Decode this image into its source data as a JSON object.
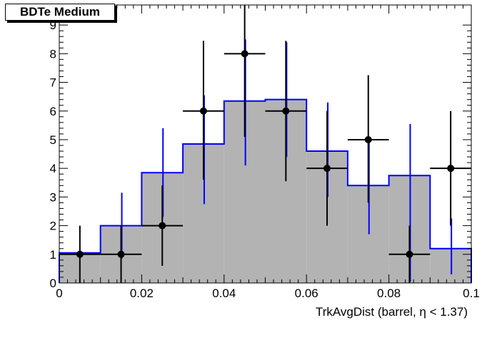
{
  "chart_data": {
    "type": "bar",
    "title": "BDTe Medium",
    "xlabel": "TrkAvgDist (barrel,  η < 1.37)",
    "ylabel": "",
    "xlim": [
      0,
      0.1
    ],
    "ylim": [
      0,
      9.7
    ],
    "grid": false,
    "bin_edges": [
      0,
      0.01,
      0.02,
      0.03,
      0.04,
      0.05,
      0.06,
      0.07,
      0.08,
      0.09,
      0.1
    ],
    "x_ticks": [
      "0",
      "0.02",
      "0.04",
      "0.06",
      "0.08",
      "0.1"
    ],
    "x_tick_values": [
      0,
      0.02,
      0.04,
      0.06,
      0.08,
      0.1
    ],
    "y_ticks": [
      "0",
      "1",
      "2",
      "3",
      "4",
      "5",
      "6",
      "7",
      "8",
      "9"
    ],
    "y_tick_values": [
      0,
      1,
      2,
      3,
      4,
      5,
      6,
      7,
      8,
      9
    ],
    "series": [
      {
        "kind": "histogram",
        "color": "#0000ff",
        "fill": "#b3b3b3",
        "values": [
          1.05,
          2.0,
          3.85,
          4.85,
          6.35,
          6.4,
          4.6,
          3.4,
          3.75,
          1.2
        ],
        "errors": [
          [
            1.05,
            1.05
          ],
          [
            0.85,
            3.15
          ],
          [
            2.3,
            5.4
          ],
          [
            2.75,
            6.55
          ],
          [
            4.1,
            8.5
          ],
          [
            4.4,
            8.4
          ],
          [
            3.0,
            6.3
          ],
          [
            1.7,
            5.05
          ],
          [
            0.05,
            5.55
          ],
          [
            0.3,
            2.25
          ]
        ]
      },
      {
        "kind": "data_points",
        "color": "#000000",
        "x": [
          0.005,
          0.015,
          0.025,
          0.035,
          0.045,
          0.055,
          0.065,
          0.075,
          0.085,
          0.095
        ],
        "values": [
          1,
          1,
          2,
          6,
          8,
          6,
          4,
          5,
          1,
          4
        ],
        "errors": [
          [
            0,
            2.0
          ],
          [
            0,
            2.0
          ],
          [
            0.6,
            3.4
          ],
          [
            3.6,
            8.45
          ],
          [
            5.1,
            9.7
          ],
          [
            3.55,
            8.45
          ],
          [
            2.0,
            6.0
          ],
          [
            2.8,
            7.25
          ],
          [
            0,
            2.0
          ],
          [
            2.0,
            6.0
          ]
        ]
      }
    ]
  }
}
